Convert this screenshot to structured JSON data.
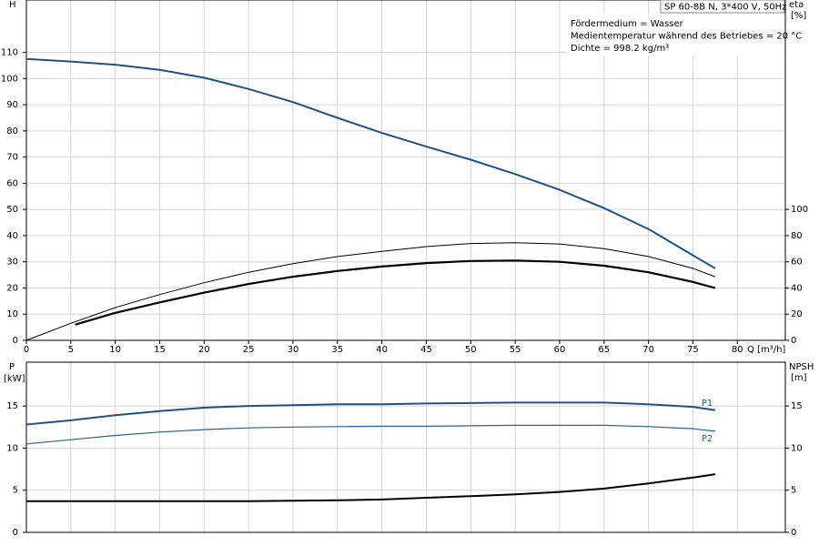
{
  "chart_data": [
    {
      "type": "line",
      "title": "SP 60-8B N, 3*400 V, 50Hz",
      "annotations": [
        "Fördermedium = Wasser",
        "Medientemperatur während des Betriebes = 20 °C",
        "Dichte = 998.2 kg/m³"
      ],
      "ylabel": "H",
      "y2label": "eta",
      "y2unit": "[%]",
      "xlabel": "Q [m³/h]",
      "xlim": [
        0,
        85.4
      ],
      "xticks": [
        0,
        5,
        10,
        15,
        20,
        25,
        30,
        35,
        40,
        45,
        50,
        55,
        60,
        65,
        70,
        75,
        80
      ],
      "ylim": [
        0,
        130
      ],
      "yticks": [
        0,
        10,
        20,
        30,
        40,
        50,
        60,
        70,
        80,
        90,
        100,
        110
      ],
      "y2lim": [
        0,
        260
      ],
      "y2ticks": [
        0,
        20,
        40,
        60,
        80,
        100
      ],
      "grid": true,
      "series": [
        {
          "color": "#1f5287",
          "linewidth": 2,
          "x": [
            0,
            5,
            10,
            15,
            20,
            25,
            30,
            35,
            40,
            45,
            50,
            55,
            60,
            65,
            70,
            75,
            77.5
          ],
          "values": [
            107.5,
            106.5,
            105.3,
            103.3,
            100.3,
            96,
            91,
            85,
            79.2,
            74,
            69,
            63.5,
            57.5,
            50.5,
            42.5,
            32.5,
            27.5
          ]
        },
        {
          "color": "#000000",
          "linewidth": 2.2,
          "axis": "y2",
          "x": [
            5.5,
            10,
            15,
            20,
            25,
            30,
            35,
            40,
            45,
            50,
            55,
            60,
            65,
            70,
            75,
            77.5
          ],
          "values": [
            12,
            21,
            29,
            36.4,
            43,
            48.6,
            53,
            56.4,
            59,
            60.6,
            61,
            60,
            57,
            52,
            44.6,
            40
          ]
        },
        {
          "color": "#000000",
          "linewidth": 1,
          "axis": "y2",
          "x": [
            0,
            5,
            10,
            15,
            20,
            25,
            30,
            35,
            40,
            45,
            50,
            55,
            60,
            65,
            70,
            75,
            77.5
          ],
          "values": [
            0,
            13,
            25,
            35,
            44,
            52,
            58.6,
            64,
            68,
            71.6,
            74,
            74.6,
            73.6,
            70,
            64,
            55,
            48.6
          ]
        }
      ]
    },
    {
      "type": "line",
      "ylabel": "P",
      "yunit": "[kW]",
      "y2label": "NPSH",
      "y2unit": "[m]",
      "xlim": [
        0,
        85.4
      ],
      "ylim": [
        0,
        20.2
      ],
      "yticks": [
        0,
        5,
        10,
        15
      ],
      "y2lim": [
        0,
        20.2
      ],
      "y2ticks": [
        0,
        5,
        10,
        15
      ],
      "grid": true,
      "series": [
        {
          "name": "P1",
          "color": "#1f5287",
          "linewidth": 2,
          "x": [
            0,
            5,
            10,
            15,
            20,
            25,
            30,
            35,
            40,
            45,
            50,
            55,
            60,
            65,
            70,
            75,
            77.5
          ],
          "values": [
            12.8,
            13.3,
            13.9,
            14.4,
            14.8,
            15.0,
            15.1,
            15.2,
            15.2,
            15.3,
            15.35,
            15.4,
            15.4,
            15.4,
            15.2,
            14.9,
            14.5
          ]
        },
        {
          "name": "P2",
          "color": "#2a5f9e",
          "linewidth": 1.2,
          "x": [
            0,
            5,
            10,
            15,
            20,
            25,
            30,
            35,
            40,
            45,
            50,
            55,
            60,
            65,
            70,
            75,
            77.5
          ],
          "values": [
            10.5,
            11,
            11.5,
            11.9,
            12.2,
            12.4,
            12.5,
            12.55,
            12.6,
            12.6,
            12.65,
            12.7,
            12.7,
            12.7,
            12.55,
            12.3,
            12.0
          ]
        },
        {
          "color": "#000000",
          "linewidth": 2,
          "axis": "y2",
          "x": [
            0,
            5,
            10,
            15,
            20,
            25,
            30,
            35,
            40,
            45,
            50,
            55,
            60,
            65,
            70,
            75,
            77.5
          ],
          "values": [
            3.7,
            3.7,
            3.7,
            3.7,
            3.7,
            3.7,
            3.75,
            3.8,
            3.9,
            4.1,
            4.3,
            4.5,
            4.8,
            5.2,
            5.8,
            6.5,
            6.9
          ]
        }
      ]
    }
  ]
}
